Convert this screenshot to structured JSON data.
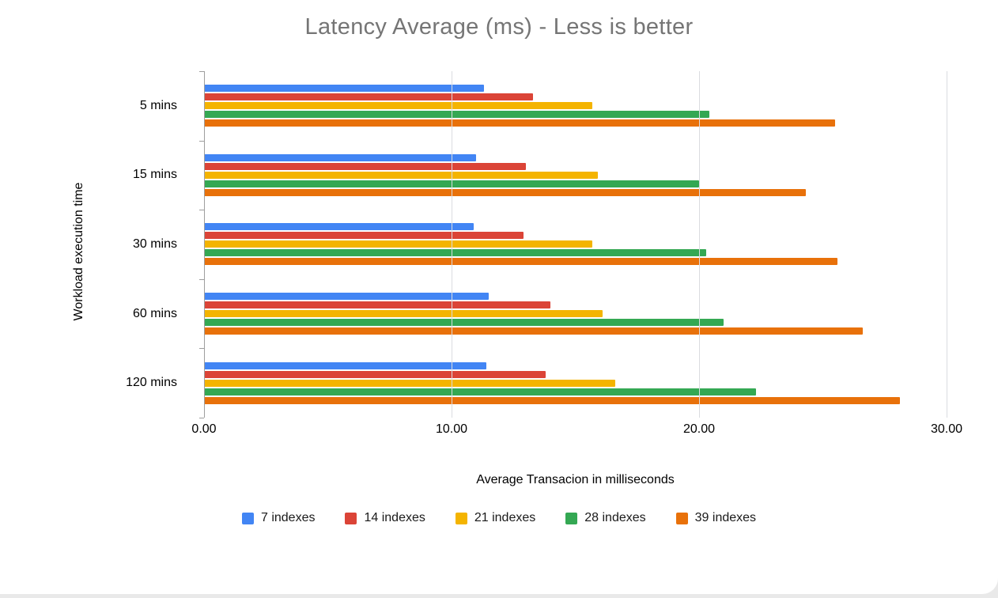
{
  "chart_data": {
    "type": "bar",
    "orientation": "horizontal",
    "title": "Latency Average (ms) - Less is better",
    "xlabel": "Average Transacion in milliseconds",
    "ylabel": "Workload execution time",
    "categories": [
      "5 mins",
      "15 mins",
      "30 mins",
      "60 mins",
      "120 mins"
    ],
    "series": [
      {
        "name": "7 indexes",
        "color": "#4285f4",
        "values": [
          11.3,
          11.0,
          10.9,
          11.5,
          11.4
        ]
      },
      {
        "name": "14 indexes",
        "color": "#db4437",
        "values": [
          13.3,
          13.0,
          12.9,
          14.0,
          13.8
        ]
      },
      {
        "name": "21 indexes",
        "color": "#f4b400",
        "values": [
          15.7,
          15.9,
          15.7,
          16.1,
          16.6
        ]
      },
      {
        "name": "28 indexes",
        "color": "#34a853",
        "values": [
          20.4,
          20.0,
          20.3,
          21.0,
          22.3
        ]
      },
      {
        "name": "39 indexes",
        "color": "#e8710a",
        "values": [
          25.5,
          24.3,
          25.6,
          26.6,
          28.1
        ]
      }
    ],
    "x_ticks": [
      {
        "value": 0,
        "label": "0.00"
      },
      {
        "value": 10,
        "label": "10.00"
      },
      {
        "value": 20,
        "label": "20.00"
      },
      {
        "value": 30,
        "label": "30.00"
      }
    ],
    "xlim": [
      0,
      30
    ],
    "grid": true,
    "legend_position": "bottom"
  }
}
